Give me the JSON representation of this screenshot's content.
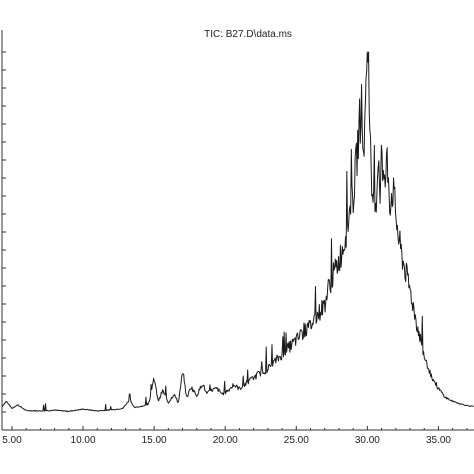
{
  "chart_data": {
    "type": "line",
    "title": "TIC: B27.D\\data.ms",
    "xlabel": "",
    "ylabel": "",
    "xlim": [
      4.3,
      37.5
    ],
    "ylim": [
      0,
      100
    ],
    "x_ticks": [
      5,
      10,
      15,
      20,
      25,
      30,
      35
    ],
    "x_tick_labels": [
      "5.00",
      "10.00",
      "15.00",
      "20.00",
      "25.00",
      "30.00",
      "35.00"
    ],
    "y_tick_labels": [],
    "grid": false,
    "legend": "none",
    "trace_color": "#1a1a1a",
    "series": [
      {
        "x": [
          4.3,
          4.6,
          5.0,
          5.4,
          6.0,
          7.0,
          8.0,
          9.0,
          10.0,
          11.0,
          12.0,
          12.8,
          13.3,
          13.6,
          14.0,
          14.6,
          15.0,
          15.3,
          15.6,
          16.0,
          16.4,
          16.7,
          17.0,
          17.3,
          17.6,
          18.0,
          18.4,
          18.7,
          19.0,
          19.4,
          19.8,
          20.2,
          20.6,
          21.0,
          21.5,
          22.0,
          22.5,
          23.0,
          23.5,
          24.0,
          24.5,
          25.0,
          25.5,
          26.0,
          26.5,
          27.0,
          27.3,
          27.6,
          28.0,
          28.3,
          28.6,
          29.0,
          29.2,
          29.4,
          29.6,
          29.8,
          29.9,
          30.0,
          30.1,
          30.3,
          30.5,
          30.7,
          30.8,
          30.9,
          31.0,
          31.1,
          31.2,
          31.4,
          31.6,
          31.8,
          32.0,
          32.2,
          32.5,
          33.0,
          33.5,
          34.0,
          34.5,
          35.0,
          35.5,
          36.0,
          36.5,
          37.0,
          37.5
        ],
        "values": [
          1.5,
          3.0,
          1.0,
          2.0,
          0.4,
          0.3,
          0.5,
          0.2,
          0.8,
          0.3,
          0.6,
          1.0,
          3.5,
          1.2,
          1.5,
          2.0,
          9.0,
          3.0,
          6.0,
          2.5,
          5.0,
          2.5,
          11.0,
          4.0,
          7.0,
          4.5,
          8.0,
          5.0,
          6.0,
          6.5,
          5.0,
          6.0,
          7.5,
          6.5,
          8.0,
          9.5,
          11.0,
          12.0,
          14.0,
          16.0,
          18.0,
          20.0,
          22.0,
          24.0,
          27.0,
          30.0,
          35.0,
          38.0,
          42.0,
          46.0,
          52.0,
          60.0,
          68.0,
          78.0,
          86.0,
          72.0,
          96.0,
          100.0,
          84.0,
          62.0,
          56.0,
          64.0,
          72.0,
          60.0,
          78.0,
          66.0,
          62.0,
          70.0,
          58.0,
          62.0,
          55.0,
          48.0,
          42.0,
          34.0,
          24.0,
          16.0,
          10.0,
          6.5,
          4.0,
          3.0,
          2.3,
          1.8,
          1.5
        ]
      }
    ]
  }
}
